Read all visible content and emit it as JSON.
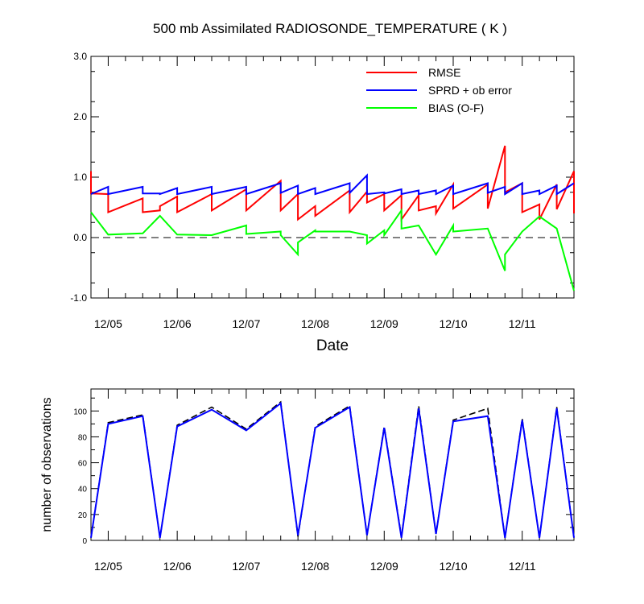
{
  "chart_data": [
    {
      "type": "line",
      "title": "500 mb Assimilated RADIOSONDE_TEMPERATURE ( K )",
      "xlabel": "Date",
      "ylabel": "",
      "ylim": [
        -1.0,
        3.0
      ],
      "xlim": [
        0,
        28
      ],
      "yticks": [
        "-1.0",
        "0.0",
        "1.0",
        "2.0",
        "3.0"
      ],
      "xticks": [
        "12/05",
        "12/06",
        "12/07",
        "12/08",
        "12/09",
        "12/10",
        "12/11"
      ],
      "xtick_positions": [
        1,
        5,
        9,
        13,
        17,
        21,
        25
      ],
      "legend_position": "top-right",
      "reference_line": 0.0,
      "series": [
        {
          "name": "RMSE",
          "color": "#ff0000",
          "points": [
            [
              0,
              1.1
            ],
            [
              0,
              0.73
            ],
            [
              1,
              0.72
            ],
            [
              1,
              0.42
            ],
            [
              3,
              0.65
            ],
            [
              3,
              0.42
            ],
            [
              4,
              0.45
            ],
            [
              4,
              0.52
            ],
            [
              5,
              0.68
            ],
            [
              5,
              0.42
            ],
            [
              7,
              0.72
            ],
            [
              7,
              0.45
            ],
            [
              9,
              0.8
            ],
            [
              9,
              0.45
            ],
            [
              11,
              0.94
            ],
            [
              11,
              0.45
            ],
            [
              12,
              0.72
            ],
            [
              12,
              0.3
            ],
            [
              13,
              0.52
            ],
            [
              13,
              0.36
            ],
            [
              15,
              0.78
            ],
            [
              15,
              0.42
            ],
            [
              16,
              0.76
            ],
            [
              16,
              0.58
            ],
            [
              17,
              0.72
            ],
            [
              17,
              0.45
            ],
            [
              18,
              0.7
            ],
            [
              18,
              0.3
            ],
            [
              19,
              0.7
            ],
            [
              19,
              0.45
            ],
            [
              20,
              0.52
            ],
            [
              20,
              0.4
            ],
            [
              21,
              0.88
            ],
            [
              21,
              0.48
            ],
            [
              23,
              0.88
            ],
            [
              23,
              0.48
            ],
            [
              24,
              1.52
            ],
            [
              24,
              0.75
            ],
            [
              25,
              0.9
            ],
            [
              25,
              0.42
            ],
            [
              26,
              0.55
            ],
            [
              26,
              0.3
            ],
            [
              27,
              0.88
            ],
            [
              27,
              0.47
            ],
            [
              28,
              1.1
            ],
            [
              28,
              0.4
            ]
          ]
        },
        {
          "name": "SPRD + ob error",
          "color": "#0000ff",
          "points": [
            [
              0,
              0.72
            ],
            [
              1,
              0.84
            ],
            [
              1,
              0.72
            ],
            [
              3,
              0.84
            ],
            [
              3,
              0.73
            ],
            [
              4,
              0.73
            ],
            [
              4,
              0.72
            ],
            [
              5,
              0.82
            ],
            [
              5,
              0.72
            ],
            [
              7,
              0.84
            ],
            [
              7,
              0.72
            ],
            [
              9,
              0.84
            ],
            [
              9,
              0.72
            ],
            [
              11,
              0.9
            ],
            [
              11,
              0.74
            ],
            [
              12,
              0.86
            ],
            [
              12,
              0.72
            ],
            [
              13,
              0.82
            ],
            [
              13,
              0.72
            ],
            [
              15,
              0.9
            ],
            [
              15,
              0.74
            ],
            [
              16,
              1.03
            ],
            [
              16,
              0.72
            ],
            [
              17,
              0.75
            ],
            [
              17,
              0.73
            ],
            [
              18,
              0.8
            ],
            [
              18,
              0.72
            ],
            [
              19,
              0.78
            ],
            [
              19,
              0.72
            ],
            [
              20,
              0.78
            ],
            [
              20,
              0.72
            ],
            [
              21,
              0.86
            ],
            [
              21,
              0.72
            ],
            [
              23,
              0.9
            ],
            [
              23,
              0.74
            ],
            [
              24,
              0.84
            ],
            [
              24,
              0.72
            ],
            [
              25,
              0.9
            ],
            [
              25,
              0.72
            ],
            [
              26,
              0.78
            ],
            [
              26,
              0.72
            ],
            [
              27,
              0.86
            ],
            [
              27,
              0.72
            ],
            [
              28,
              0.9
            ]
          ]
        },
        {
          "name": "BIAS (O-F)",
          "color": "#00ff00",
          "points": [
            [
              0,
              0.42
            ],
            [
              1,
              0.05
            ],
            [
              3,
              0.07
            ],
            [
              4,
              0.36
            ],
            [
              5,
              0.05
            ],
            [
              7,
              0.04
            ],
            [
              9,
              0.2
            ],
            [
              9,
              0.06
            ],
            [
              11,
              0.1
            ],
            [
              11,
              0.04
            ],
            [
              12,
              -0.28
            ],
            [
              12,
              -0.08
            ],
            [
              13,
              0.12
            ],
            [
              13,
              0.1
            ],
            [
              15,
              0.1
            ],
            [
              16,
              0.04
            ],
            [
              16,
              -0.1
            ],
            [
              17,
              0.12
            ],
            [
              17,
              0.04
            ],
            [
              18,
              0.45
            ],
            [
              18,
              0.15
            ],
            [
              19,
              0.2
            ],
            [
              20,
              -0.28
            ],
            [
              21,
              0.2
            ],
            [
              21,
              0.1
            ],
            [
              23,
              0.15
            ],
            [
              24,
              -0.55
            ],
            [
              24,
              -0.28
            ],
            [
              25,
              0.1
            ],
            [
              26,
              0.35
            ],
            [
              27,
              0.15
            ],
            [
              28,
              -0.88
            ]
          ]
        }
      ]
    },
    {
      "type": "line",
      "title": "",
      "xlabel": "",
      "ylabel": "number of observations",
      "ylim": [
        0,
        117
      ],
      "xlim": [
        0,
        28
      ],
      "yticks": [
        "0",
        "20",
        "40",
        "60",
        "80",
        "100"
      ],
      "xticks": [
        "12/05",
        "12/06",
        "12/07",
        "12/08",
        "12/09",
        "12/10",
        "12/11"
      ],
      "xtick_positions": [
        1,
        5,
        9,
        13,
        17,
        21,
        25
      ],
      "series": [
        {
          "color": "#000000",
          "dash": true,
          "points": [
            [
              0,
              2
            ],
            [
              1,
              91
            ],
            [
              3,
              97
            ],
            [
              4,
              2
            ],
            [
              5,
              89
            ],
            [
              7,
              103
            ],
            [
              9,
              86
            ],
            [
              11,
              107
            ],
            [
              12,
              3
            ],
            [
              13,
              88
            ],
            [
              15,
              104
            ],
            [
              16,
              4
            ],
            [
              17,
              88
            ],
            [
              18,
              3
            ],
            [
              19,
              104
            ],
            [
              20,
              5
            ],
            [
              21,
              93
            ],
            [
              23,
              102
            ],
            [
              24,
              2
            ],
            [
              25,
              94
            ],
            [
              26,
              2
            ],
            [
              27,
              103
            ],
            [
              28,
              2
            ]
          ]
        },
        {
          "color": "#0000ff",
          "dash": false,
          "points": [
            [
              0,
              2
            ],
            [
              1,
              90
            ],
            [
              3,
              96
            ],
            [
              4,
              2
            ],
            [
              5,
              88
            ],
            [
              7,
              101
            ],
            [
              9,
              85
            ],
            [
              11,
              106
            ],
            [
              12,
              4
            ],
            [
              13,
              87
            ],
            [
              15,
              103
            ],
            [
              16,
              4
            ],
            [
              17,
              87
            ],
            [
              18,
              2
            ],
            [
              19,
              102
            ],
            [
              20,
              5
            ],
            [
              21,
              92
            ],
            [
              23,
              96
            ],
            [
              24,
              2
            ],
            [
              25,
              93
            ],
            [
              26,
              2
            ],
            [
              27,
              102
            ],
            [
              28,
              2
            ]
          ]
        }
      ]
    }
  ]
}
